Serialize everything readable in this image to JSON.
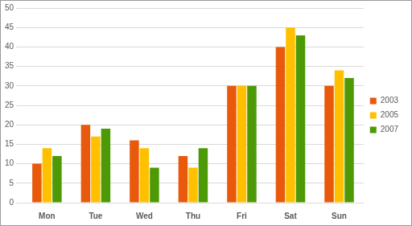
{
  "chart_data": {
    "type": "bar",
    "categories": [
      "Mon",
      "Tue",
      "Wed",
      "Thu",
      "Fri",
      "Sat",
      "Sun"
    ],
    "series": [
      {
        "name": "2003",
        "color": "#e8590c",
        "values": [
          10,
          20,
          16,
          12,
          30,
          40,
          30
        ]
      },
      {
        "name": "2005",
        "color": "#ffc000",
        "values": [
          14,
          17,
          14,
          9,
          30,
          45,
          34
        ]
      },
      {
        "name": "2007",
        "color": "#4e9a06",
        "values": [
          12,
          19,
          9,
          14,
          30,
          43,
          32
        ]
      }
    ],
    "ylim": [
      0,
      50
    ],
    "yticks": [
      0,
      5,
      10,
      15,
      20,
      25,
      30,
      35,
      40,
      45,
      50
    ],
    "grid": true,
    "legend": "right"
  }
}
